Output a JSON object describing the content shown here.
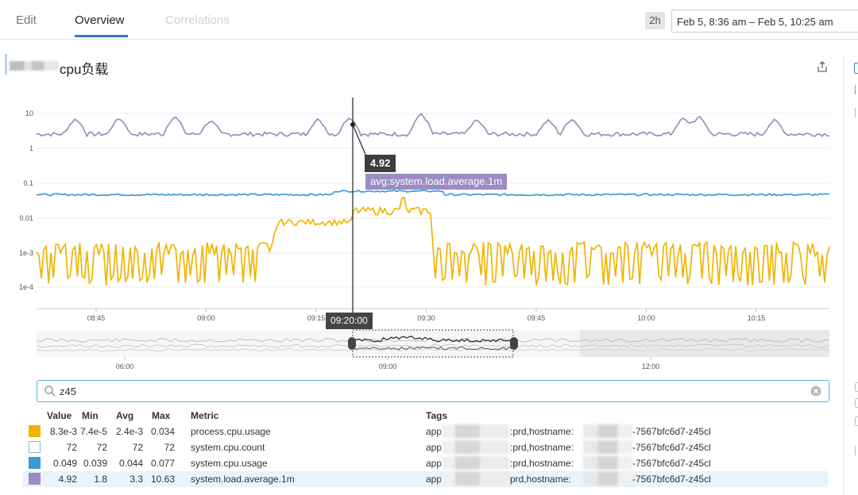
{
  "tabs": [
    {
      "label": "Edit"
    },
    {
      "label": "Overview"
    },
    {
      "label": "Correlations"
    }
  ],
  "time_range": {
    "badge": "2h",
    "value": "Feb 5, 8:36 am – Feb 5, 10:25 am"
  },
  "widget": {
    "title_visible": "cpu负载"
  },
  "tooltip": {
    "value": "4.92",
    "metric": "avg:system.load.average.1m",
    "time": "09:20:00"
  },
  "search": {
    "value": "z45"
  },
  "legend": {
    "headers": {
      "value": "Value",
      "min": "Min",
      "avg": "Avg",
      "max": "Max",
      "metric": "Metric",
      "tags": "Tags"
    },
    "rows": [
      {
        "color": "#f0b400",
        "value": "8.3e-3",
        "min": "7.4e-5",
        "avg": "2.4e-3",
        "max": "0.034",
        "metric": "process.cpu.usage",
        "tags_prefix": "app",
        "tags_mid": ":prd,hostname:",
        "tags_suffix": "-7567bfc6d7-z45cl"
      },
      {
        "color": "#ffffff",
        "value": "72",
        "min": "72",
        "avg": "72",
        "max": "72",
        "metric": "system.cpu.count",
        "tags_prefix": "app",
        "tags_mid": ":prd,hostname:",
        "tags_suffix": "-7567bfc6d7-z45cl"
      },
      {
        "color": "#3b9bd4",
        "value": "0.049",
        "min": "0.039",
        "avg": "0.044",
        "max": "0.077",
        "metric": "system.cpu.usage",
        "tags_prefix": "app",
        "tags_mid": ":prd,hostname:",
        "tags_suffix": "-7567bfc6d7-z45cl"
      },
      {
        "color": "#9b8cc2",
        "value": "4.92",
        "min": "1.8",
        "avg": "3.3",
        "max": "10.63",
        "metric": "system.load.average.1m",
        "tags_prefix": "app",
        "tags_mid": "prd,hostname:",
        "tags_suffix": "-7567bfc6d7-z45cl"
      }
    ]
  },
  "chart_data": {
    "type": "line",
    "title": "",
    "y_scale": "log",
    "y_ticks": [
      "10",
      "1",
      "0.1",
      "0.01",
      "1e-3",
      "1e-4"
    ],
    "x_ticks": [
      "08:45",
      "09:00",
      "09:15",
      "09:30",
      "09:45",
      "10:00",
      "10:15"
    ],
    "x_range": [
      "08:36",
      "10:25"
    ],
    "grid": true,
    "series": [
      {
        "name": "system.load.average.1m",
        "color": "#9b8cc2"
      },
      {
        "name": "system.cpu.usage",
        "color": "#3b9bd4"
      },
      {
        "name": "process.cpu.usage",
        "color": "#f0b400"
      }
    ],
    "cursor": {
      "x": "09:20:00",
      "y": 4.92
    },
    "navigator": {
      "x_ticks": [
        "06:00",
        "09:00",
        "12:00"
      ]
    }
  }
}
